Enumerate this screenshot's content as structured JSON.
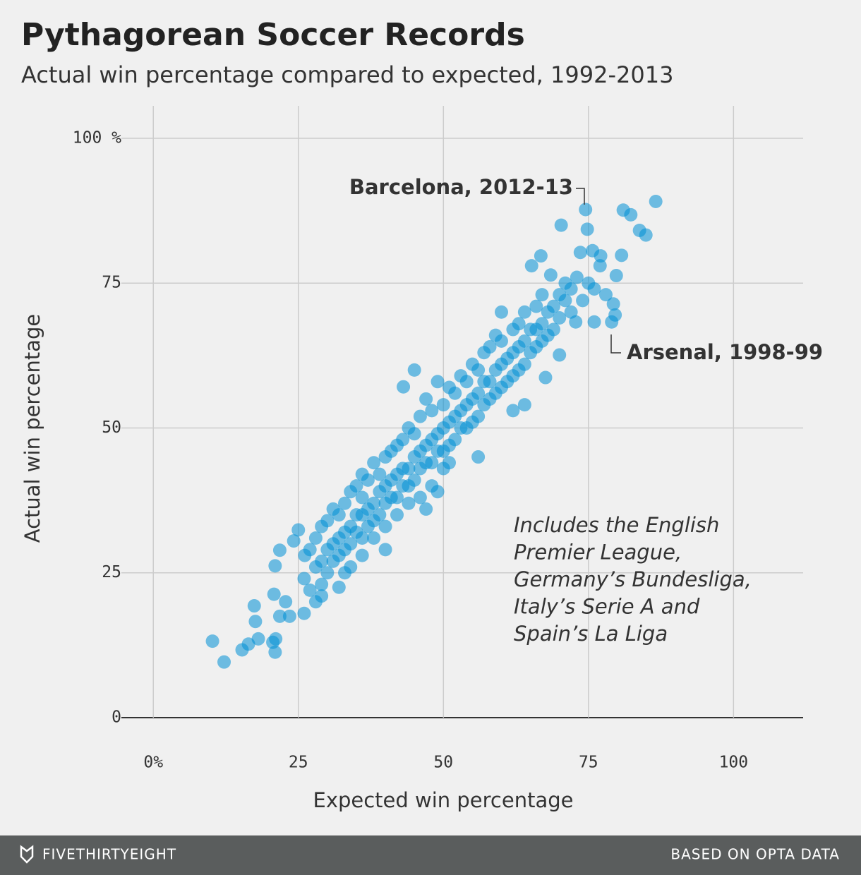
{
  "chart_data": {
    "type": "scatter",
    "title": "Pythagorean Soccer Records",
    "subtitle": "Actual win percentage compared to expected, 1992-2013",
    "x_label": "Expected win percentage",
    "y_label": "Actual win percentage",
    "annotations": [
      "Barcelona, 2012-13",
      "Arsenal, 1998-99"
    ],
    "note": [
      "Includes the English",
      "Premier League,",
      "Germany’s Bundesliga,",
      "Italy’s Serie A and",
      "Spain’s La Liga"
    ],
    "footer": {
      "brand": "FIVETHIRTYEIGHT",
      "source": "BASED ON OPTA DATA"
    },
    "color": "#008fd5",
    "grid": true,
    "xlim": [
      -5.5,
      112
    ],
    "ylim": [
      0,
      105.6
    ],
    "xticks": [
      {
        "value": 0,
        "label": "0%"
      },
      25,
      50,
      75,
      100
    ],
    "yticks": [
      0,
      25,
      50,
      75,
      {
        "value": 100,
        "label": "100 %"
      }
    ],
    "x": [
      10.2,
      12.2,
      15.3,
      16.4,
      17.4,
      17.6,
      18.1,
      20.6,
      21,
      21.1,
      20.8,
      21,
      21.8,
      21.8,
      22.8,
      23.5,
      24.2,
      25,
      26,
      26.1,
      74.5,
      81,
      82.3,
      83.8,
      84.9,
      86.6,
      70.3,
      74.8,
      80.7,
      79.8,
      79.3,
      79.6,
      79,
      76,
      73.6,
      75.7,
      77.1,
      66.8,
      65.2,
      68.5,
      70,
      67.6,
      72.8,
      43.1,
      26,
      27,
      27,
      28,
      28,
      28,
      29,
      29,
      29,
      30,
      30,
      30,
      31,
      31,
      31,
      32,
      32,
      32,
      32,
      33,
      33,
      33,
      34,
      34,
      34,
      34,
      35,
      35,
      35,
      36,
      36,
      36,
      36,
      37,
      37,
      37,
      38,
      38,
      38,
      38,
      39,
      39,
      39,
      40,
      40,
      40,
      40,
      41,
      41,
      41,
      42,
      42,
      42,
      42,
      43,
      43,
      43,
      44,
      44,
      44,
      44,
      45,
      45,
      45,
      46,
      46,
      46,
      46,
      47,
      47,
      47,
      48,
      48,
      48,
      48,
      49,
      49,
      49,
      50,
      50,
      50,
      50,
      51,
      51,
      51,
      52,
      52,
      52,
      53,
      53,
      53,
      54,
      54,
      54,
      55,
      55,
      55,
      56,
      56,
      56,
      57,
      57,
      57,
      58,
      58,
      58,
      59,
      59,
      59,
      60,
      60,
      60,
      61,
      61,
      62,
      62,
      62,
      63,
      63,
      63,
      64,
      64,
      64,
      65,
      65,
      66,
      66,
      66,
      67,
      67,
      67,
      68,
      68,
      69,
      69,
      70,
      70,
      71,
      71,
      72,
      72,
      73,
      74,
      75,
      76,
      77,
      78,
      47,
      49,
      56,
      45,
      40,
      51,
      60,
      62,
      64,
      36,
      33,
      29
    ],
    "values": [
      13.2,
      9.6,
      11.7,
      12.7,
      19.3,
      16.6,
      13.6,
      13,
      11.3,
      13.6,
      21.3,
      26.2,
      28.9,
      17.5,
      20,
      17.5,
      30.5,
      32.4,
      18,
      28,
      87.7,
      87.6,
      86.8,
      84.1,
      83.3,
      89.1,
      85,
      84.3,
      79.8,
      76.3,
      71.4,
      69.5,
      68.3,
      68.3,
      80.3,
      80.6,
      79.7,
      79.7,
      78,
      76.4,
      62.6,
      58.7,
      68.3,
      57.1,
      24,
      29,
      22,
      26,
      31,
      20,
      27,
      33,
      23,
      29,
      25,
      34,
      30,
      27,
      36,
      31,
      28,
      35,
      22.5,
      32,
      29,
      37,
      33,
      30,
      39,
      26,
      35,
      32,
      40,
      35,
      31,
      38,
      42,
      36,
      33,
      41,
      37,
      34,
      44,
      31,
      39,
      35,
      42,
      40,
      37,
      45,
      33,
      41,
      38,
      46,
      42,
      38,
      47,
      35,
      43,
      40,
      48,
      43,
      40,
      50,
      37,
      45,
      41,
      49,
      46,
      43,
      52,
      38,
      47,
      44,
      55,
      48,
      44,
      53,
      40,
      49,
      46,
      58,
      50,
      46,
      54,
      43,
      51,
      47,
      57,
      52,
      48,
      56,
      53,
      50,
      59,
      54,
      50,
      58,
      55,
      51,
      61,
      56,
      52,
      60,
      58,
      54,
      63,
      58,
      55,
      64,
      60,
      56,
      66,
      61,
      57,
      65,
      62,
      58,
      63,
      59,
      67,
      64,
      60,
      68,
      65,
      61,
      70,
      67,
      63,
      67,
      64,
      71,
      68,
      65,
      73,
      70,
      66,
      71,
      67,
      73,
      69,
      72,
      75,
      74,
      70,
      76,
      72,
      75,
      74,
      78,
      73,
      36,
      39,
      45,
      60,
      29,
      44,
      70,
      53,
      54,
      28,
      25,
      21
    ]
  }
}
